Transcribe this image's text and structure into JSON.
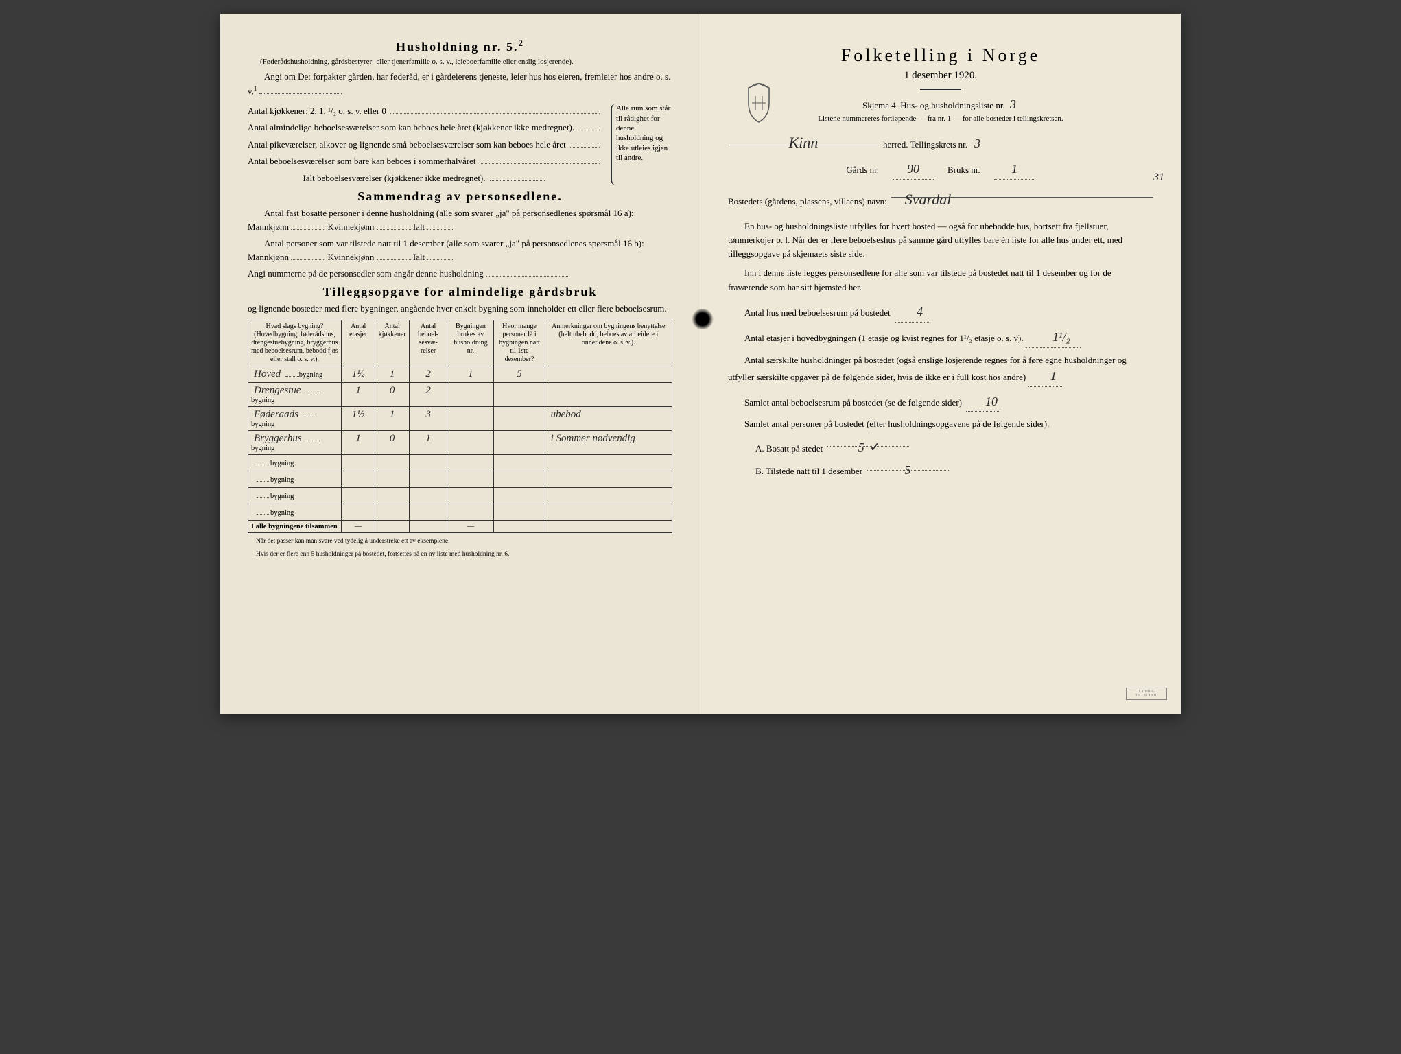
{
  "left": {
    "household_title": "Husholdning nr. 5.",
    "household_sup": "2",
    "household_paren": "(Føderådshusholdning, gårdsbestyrer- eller tjenerfamilie o. s. v., leieboerfamilie eller enslig losjerende).",
    "angi_line": "Angi om De: forpakter gården, har føderåd, er i gårdeierens tjeneste, leier hus hos eieren, fremleier hos andre o. s. v.",
    "angi_sup": "1",
    "kitchen_line": "Antal kjøkkener: 2, 1, ¹/₂ o. s. v. eller 0",
    "room_lines": [
      "Antal almindelige beboelsesværelser som kan beboes hele året (kjøkkener ikke medregnet).",
      "Antal pikeværelser, alkover og lignende små beboelsesværelser som kan beboes hele året",
      "Antal beboelsesværelser som bare kan beboes i sommerhalvåret"
    ],
    "ialt_line": "Ialt beboelsesværelser (kjøkkener ikke medregnet).",
    "brace_text": "Alle rum som står til rådighet for denne husholdning og ikke utleies igjen til andre.",
    "sammendrag_title": "Sammendrag av personsedlene.",
    "sd_line1_a": "Antal fast bosatte personer i denne husholdning (alle som svarer „ja\" på personsedlenes spørsmål 16 a): Mannkjønn",
    "sd_line1_b": "Kvinnekjønn",
    "sd_line1_c": "Ialt",
    "sd_line2_a": "Antal personer som var tilstede natt til 1 desember (alle som svarer „ja\" på personsedlenes spørsmål 16 b): Mannkjønn",
    "sd_line2_b": "Kvinnekjønn",
    "sd_line2_c": "Ialt",
    "sd_line3": "Angi nummerne på de personsedler som angår denne husholdning",
    "tillegg_title": "Tilleggsopgave for almindelige gårdsbruk",
    "tillegg_sub": "og lignende bosteder med flere bygninger, angående hver enkelt bygning som inneholder ett eller flere beboelsesrum.",
    "table": {
      "headers": [
        "Hvad slags bygning?\n(Hovedbygning, føderådshus, drengestuebygning, bryggerhus med beboelsesrum, bebodd fjøs eller stall o. s. v.).",
        "Antal etasjer",
        "Antal kjøkkener",
        "Antal beboel-sesvæ-relser",
        "Bygningen brukes av husholdning nr.",
        "Hvor mange personer lå i bygningen natt til 1ste desember?",
        "Anmerkninger om bygningens benyttelse (helt ubebodd, beboes av arbeidere i onnetidene o. s. v.)."
      ],
      "rows": [
        {
          "label_hand": "Hoved",
          "label_print": "bygning",
          "c": [
            "1½",
            "1",
            "2",
            "1",
            "5",
            ""
          ]
        },
        {
          "label_hand": "Drengestue",
          "label_print": "bygning",
          "c": [
            "1",
            "0",
            "2",
            "",
            "",
            ""
          ]
        },
        {
          "label_hand": "Føderaads",
          "label_print": "bygning",
          "c": [
            "1½",
            "1",
            "3",
            "",
            "",
            "ubebod"
          ]
        },
        {
          "label_hand": "Bryggerhus",
          "label_print": "bygning",
          "c": [
            "1",
            "0",
            "1",
            "",
            "",
            "i Sommer nødvendig"
          ]
        },
        {
          "label_hand": "",
          "label_print": "bygning",
          "c": [
            "",
            "",
            "",
            "",
            "",
            ""
          ]
        },
        {
          "label_hand": "",
          "label_print": "bygning",
          "c": [
            "",
            "",
            "",
            "",
            "",
            ""
          ]
        },
        {
          "label_hand": "",
          "label_print": "bygning",
          "c": [
            "",
            "",
            "",
            "",
            "",
            ""
          ]
        },
        {
          "label_hand": "",
          "label_print": "bygning",
          "c": [
            "",
            "",
            "",
            "",
            "",
            ""
          ]
        }
      ],
      "footer_label": "I alle bygningene tilsammen",
      "footer_dashes": "—"
    },
    "footnote1": "Når det passer kan man svare ved tydelig å understreke ett av eksemplene.",
    "footnote2": "Hvis der er flere enn 5 husholdninger på bostedet, fortsettes på en ny liste med husholdning nr. 6."
  },
  "right": {
    "title": "Folketelling i Norge",
    "subtitle": "1 desember 1920.",
    "skjema_a": "Skjema 4.  Hus- og husholdningsliste nr.",
    "skjema_nr": "3",
    "listene": "Listene nummereres fortløpende — fra nr. 1 — for alle bosteder i tellingskretsen.",
    "margin_31": "31",
    "herred_hand": "Kinn",
    "herred_label": "herred.  Tellingskrets nr.",
    "krets_nr": "3",
    "gard_label": "Gårds nr.",
    "gard_nr": "90",
    "bruk_label": "Bruks nr.",
    "bruk_nr": "1",
    "bosted_label": "Bostedets (gårdens, plassens, villaens) navn:",
    "bosted_hand": "Svardal",
    "para1": "En hus- og husholdningsliste utfylles for hvert bosted — også for ubebodde hus, bortsett fra fjellstuer, tømmerkojer o. l.  Når der er flere beboelseshus på samme gård utfylles bare én liste for alle hus under ett, med tilleggsopgave på skjemaets siste side.",
    "para2": "Inn i denne liste legges personsedlene for alle som var tilstede på bostedet natt til 1 desember og for de fraværende som har sitt hjemsted her.",
    "q1_label": "Antal hus med beboelsesrum på bostedet",
    "q1_val": "4",
    "q2_label_a": "Antal etasjer i hovedbygningen (1 etasje og kvist regnes for 1¹/₂ etasje o. s. v).",
    "q2_val": "1¹/₂",
    "q3_label": "Antal særskilte husholdninger på bostedet (også enslige losjerende regnes for å føre egne husholdninger og utfyller særskilte opgaver på de følgende sider, hvis de ikke er i full kost hos andre)",
    "q3_val": "1",
    "q4_label": "Samlet antal beboelsesrum på bostedet (se de følgende sider)",
    "q4_val": "10",
    "q5_label": "Samlet antal personer på bostedet (efter husholdningsopgavene på de følgende sider).",
    "qA_label": "A.  Bosatt på stedet",
    "qA_val": "5",
    "qA_check": "✓",
    "qB_label": "B.  Tilstede natt til 1 desember",
    "qB_val": "5"
  },
  "colors": {
    "paper": "#ebe6d5",
    "ink": "#2a2a2a",
    "hand": "#2a2a2a"
  }
}
